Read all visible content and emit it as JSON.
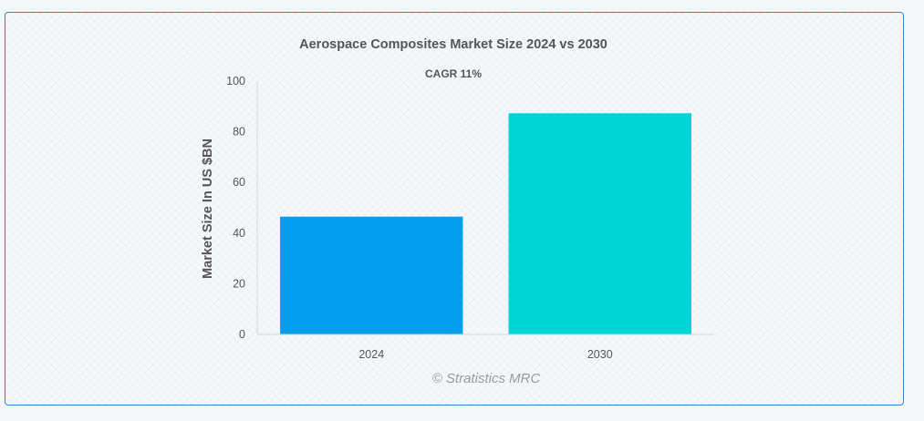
{
  "chart_data": {
    "type": "bar",
    "title": "Aerospace Composites Market Size 2024 vs 2030",
    "subtitle": "CAGR 11%",
    "xlabel": "",
    "ylabel": "Market Size In US $BN",
    "categories": [
      "2024",
      "2030"
    ],
    "values": [
      46.5,
      87.3
    ],
    "ylim": [
      0,
      100
    ],
    "yticks": [
      0,
      20,
      40,
      60,
      80,
      100
    ],
    "bar_colors": [
      "#039fec",
      "#00d5d5"
    ],
    "grid": false,
    "legend": "none"
  },
  "watermark": "© Stratistics MRC"
}
